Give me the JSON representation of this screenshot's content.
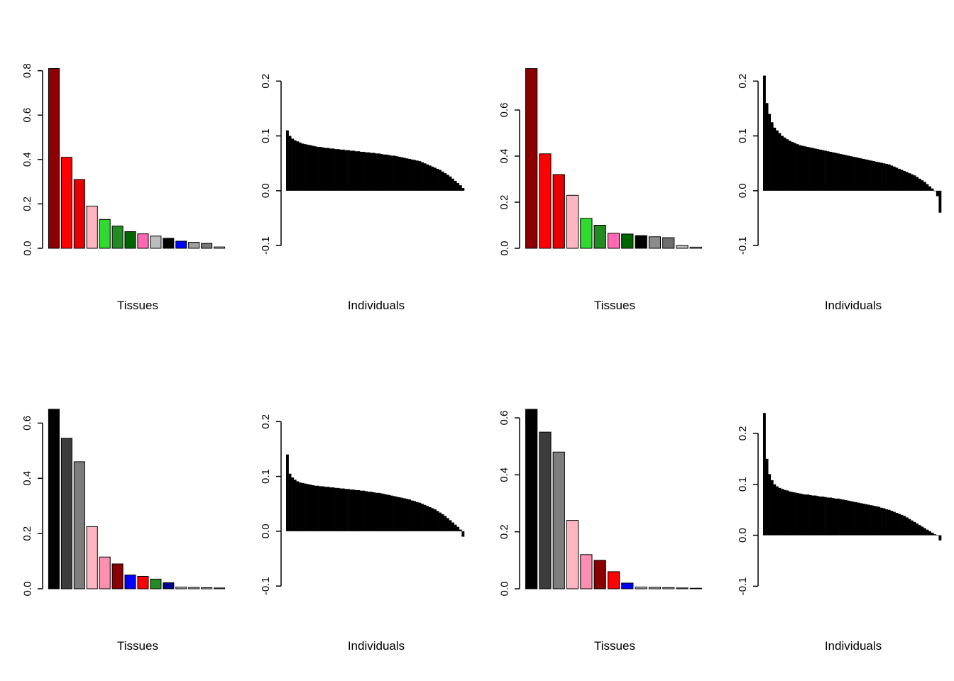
{
  "page": {
    "background": "#ffffff",
    "axis_color": "#000000",
    "description": "2x4 grid of R-style barplots: four Tissues barplots with colored bars and four Individuals barplots with dense black bars"
  },
  "chart_data": [
    {
      "type": "bar",
      "title": "",
      "xlabel": "Tissues",
      "ylabel": "",
      "style": "outlined",
      "grid": false,
      "legend": false,
      "ylim": [
        0,
        0.815
      ],
      "yticks": [
        0.0,
        0.2,
        0.4,
        0.6,
        0.8
      ],
      "values": [
        0.81,
        0.41,
        0.31,
        0.19,
        0.13,
        0.1,
        0.075,
        0.065,
        0.055,
        0.045,
        0.032,
        0.027,
        0.022,
        0.006
      ],
      "colors": [
        "#8B0000",
        "#FF0000",
        "#E60000",
        "#FFB6C1",
        "#2EDB2E",
        "#228B22",
        "#006400",
        "#FF69B4",
        "#BEBEBE",
        "#000000",
        "#0000FF",
        "#9E9E9E",
        "#787878",
        "#D3D3D3"
      ]
    },
    {
      "type": "bar",
      "title": "",
      "xlabel": "Individuals",
      "ylabel": "",
      "style": "solid",
      "grid": false,
      "legend": false,
      "bar_color": "#000000",
      "ylim": [
        -0.105,
        0.225
      ],
      "yticks": [
        -0.1,
        0.0,
        0.1,
        0.2
      ],
      "values": [
        0.11,
        0.1,
        0.095,
        0.092,
        0.09,
        0.088,
        0.086,
        0.085,
        0.084,
        0.083,
        0.082,
        0.081,
        0.08,
        0.08,
        0.079,
        0.078,
        0.078,
        0.077,
        0.077,
        0.076,
        0.076,
        0.075,
        0.075,
        0.074,
        0.074,
        0.073,
        0.073,
        0.072,
        0.072,
        0.071,
        0.071,
        0.07,
        0.07,
        0.069,
        0.069,
        0.068,
        0.068,
        0.067,
        0.066,
        0.066,
        0.065,
        0.064,
        0.064,
        0.063,
        0.062,
        0.061,
        0.06,
        0.059,
        0.058,
        0.057,
        0.056,
        0.055,
        0.054,
        0.052,
        0.05,
        0.048,
        0.046,
        0.044,
        0.042,
        0.04,
        0.038,
        0.035,
        0.032,
        0.029,
        0.026,
        0.022,
        0.018,
        0.014,
        0.01,
        0.005
      ],
      "colors": []
    },
    {
      "type": "bar",
      "title": "",
      "xlabel": "Tissues",
      "ylabel": "",
      "style": "outlined",
      "grid": false,
      "legend": false,
      "ylim": [
        0,
        0.785
      ],
      "yticks": [
        0.0,
        0.2,
        0.4,
        0.6
      ],
      "values": [
        0.78,
        0.41,
        0.32,
        0.23,
        0.13,
        0.1,
        0.065,
        0.062,
        0.055,
        0.05,
        0.046,
        0.012,
        0.005
      ],
      "colors": [
        "#8B0000",
        "#FF0000",
        "#E60000",
        "#FFB6C1",
        "#2EDB2E",
        "#228B22",
        "#FF69B4",
        "#006400",
        "#000000",
        "#8C8C8C",
        "#6E6E6E",
        "#BEBEBE",
        "#D3D3D3"
      ]
    },
    {
      "type": "bar",
      "title": "",
      "xlabel": "Individuals",
      "ylabel": "",
      "style": "solid",
      "grid": false,
      "legend": false,
      "bar_color": "#000000",
      "ylim": [
        -0.105,
        0.225
      ],
      "yticks": [
        -0.1,
        0.0,
        0.1,
        0.2
      ],
      "values": [
        0.21,
        0.16,
        0.14,
        0.125,
        0.115,
        0.11,
        0.105,
        0.1,
        0.097,
        0.094,
        0.091,
        0.089,
        0.087,
        0.085,
        0.083,
        0.082,
        0.081,
        0.08,
        0.079,
        0.078,
        0.077,
        0.076,
        0.075,
        0.074,
        0.073,
        0.072,
        0.071,
        0.07,
        0.069,
        0.068,
        0.067,
        0.066,
        0.065,
        0.064,
        0.063,
        0.062,
        0.061,
        0.06,
        0.059,
        0.058,
        0.057,
        0.056,
        0.055,
        0.054,
        0.053,
        0.052,
        0.051,
        0.05,
        0.049,
        0.048,
        0.046,
        0.044,
        0.042,
        0.04,
        0.038,
        0.036,
        0.034,
        0.032,
        0.03,
        0.028,
        0.025,
        0.022,
        0.019,
        0.016,
        0.012,
        0.008,
        0.004,
        0.0,
        -0.01,
        -0.04
      ],
      "colors": []
    },
    {
      "type": "bar",
      "title": "",
      "xlabel": "Tissues",
      "ylabel": "",
      "style": "outlined",
      "grid": false,
      "legend": false,
      "ylim": [
        0,
        0.655
      ],
      "yticks": [
        0.0,
        0.2,
        0.4,
        0.6
      ],
      "values": [
        0.65,
        0.545,
        0.46,
        0.225,
        0.115,
        0.09,
        0.05,
        0.045,
        0.035,
        0.022,
        0.006,
        0.005,
        0.004,
        0.003
      ],
      "colors": [
        "#000000",
        "#3C3C3C",
        "#7D7D7D",
        "#FFB6C1",
        "#FF8FB1",
        "#8B0000",
        "#0000FF",
        "#FF0000",
        "#228B22",
        "#00008B",
        "#BEBEBE",
        "#C8C8C8",
        "#D3D3D3",
        "#DCDCDC"
      ]
    },
    {
      "type": "bar",
      "title": "",
      "xlabel": "Individuals",
      "ylabel": "",
      "style": "solid",
      "grid": false,
      "legend": false,
      "bar_color": "#000000",
      "ylim": [
        -0.105,
        0.225
      ],
      "yticks": [
        -0.1,
        0.0,
        0.1,
        0.2
      ],
      "values": [
        0.14,
        0.105,
        0.098,
        0.094,
        0.091,
        0.089,
        0.088,
        0.087,
        0.086,
        0.085,
        0.084,
        0.083,
        0.083,
        0.082,
        0.082,
        0.081,
        0.081,
        0.08,
        0.08,
        0.079,
        0.079,
        0.078,
        0.078,
        0.077,
        0.077,
        0.076,
        0.076,
        0.075,
        0.075,
        0.074,
        0.074,
        0.073,
        0.072,
        0.072,
        0.071,
        0.07,
        0.07,
        0.069,
        0.068,
        0.067,
        0.066,
        0.065,
        0.064,
        0.063,
        0.062,
        0.061,
        0.06,
        0.059,
        0.058,
        0.056,
        0.055,
        0.053,
        0.052,
        0.05,
        0.048,
        0.046,
        0.044,
        0.042,
        0.04,
        0.037,
        0.034,
        0.031,
        0.028,
        0.024,
        0.02,
        0.016,
        0.012,
        0.008,
        0.003,
        -0.01
      ],
      "colors": []
    },
    {
      "type": "bar",
      "title": "",
      "xlabel": "Tissues",
      "ylabel": "",
      "style": "outlined",
      "grid": false,
      "legend": false,
      "ylim": [
        0,
        0.635
      ],
      "yticks": [
        0.0,
        0.2,
        0.4,
        0.6
      ],
      "values": [
        0.63,
        0.55,
        0.48,
        0.24,
        0.12,
        0.1,
        0.06,
        0.02,
        0.006,
        0.005,
        0.004,
        0.003,
        0.002
      ],
      "colors": [
        "#000000",
        "#3C3C3C",
        "#7D7D7D",
        "#FFB6C1",
        "#FF8FB1",
        "#8B0000",
        "#FF0000",
        "#0000FF",
        "#BEBEBE",
        "#C8C8C8",
        "#D3D3D3",
        "#DCDCDC",
        "#E6E6E6"
      ]
    },
    {
      "type": "bar",
      "title": "",
      "xlabel": "Individuals",
      "ylabel": "",
      "style": "solid",
      "grid": false,
      "legend": false,
      "bar_color": "#000000",
      "ylim": [
        -0.105,
        0.25
      ],
      "yticks": [
        -0.1,
        0.0,
        0.1,
        0.2
      ],
      "values": [
        0.24,
        0.15,
        0.12,
        0.108,
        0.1,
        0.096,
        0.093,
        0.091,
        0.089,
        0.088,
        0.086,
        0.085,
        0.084,
        0.083,
        0.082,
        0.081,
        0.08,
        0.08,
        0.079,
        0.078,
        0.078,
        0.077,
        0.076,
        0.076,
        0.075,
        0.074,
        0.074,
        0.073,
        0.072,
        0.072,
        0.071,
        0.07,
        0.069,
        0.068,
        0.067,
        0.066,
        0.065,
        0.064,
        0.063,
        0.062,
        0.061,
        0.06,
        0.059,
        0.058,
        0.057,
        0.056,
        0.054,
        0.053,
        0.051,
        0.05,
        0.048,
        0.046,
        0.044,
        0.042,
        0.04,
        0.038,
        0.035,
        0.032,
        0.029,
        0.026,
        0.023,
        0.02,
        0.017,
        0.014,
        0.011,
        0.008,
        0.005,
        0.002,
        0.0,
        -0.01
      ],
      "colors": []
    }
  ]
}
